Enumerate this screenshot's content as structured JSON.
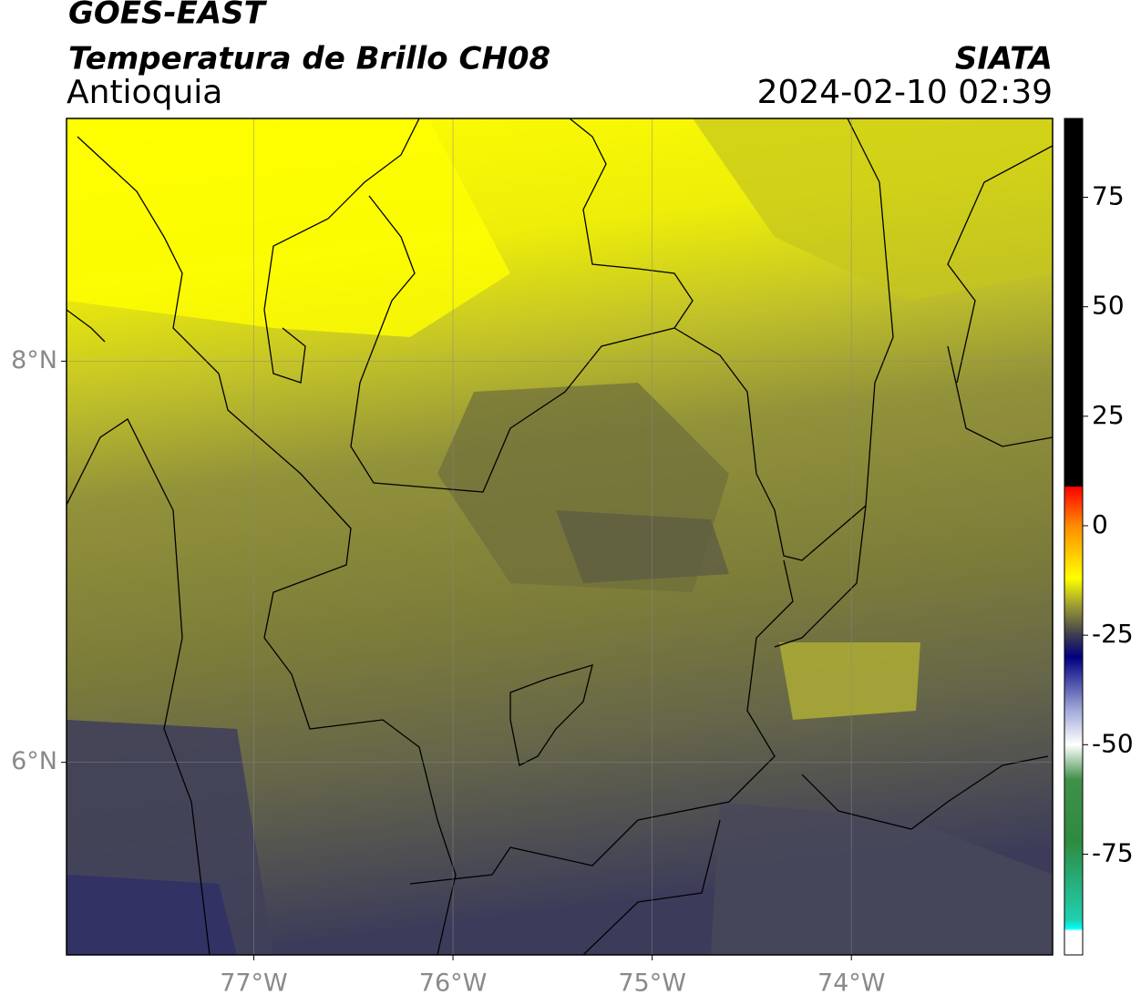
{
  "header": {
    "title": "GOES-EAST",
    "subtitle": "Temperatura de Brillo CH08",
    "region": "Antioquia",
    "source": "SIATA",
    "timestamp": "2024-02-10 02:39"
  },
  "chart_data": {
    "type": "map",
    "xlim": [
      -77.94,
      -72.99
    ],
    "ylim": [
      5.04,
      9.21
    ],
    "xticks": [
      {
        "value": -77,
        "label": "77°W"
      },
      {
        "value": -76,
        "label": "76°W"
      },
      {
        "value": -75,
        "label": "75°W"
      },
      {
        "value": -74,
        "label": "74°W"
      }
    ],
    "yticks": [
      {
        "value": 6,
        "label": "6°N"
      },
      {
        "value": 8,
        "label": "8°N"
      }
    ],
    "grid": true,
    "colorbar": {
      "lim": [
        -98,
        93
      ],
      "ticks": [
        75,
        50,
        25,
        0,
        -25,
        -50,
        -75
      ],
      "stops": [
        {
          "value": 93,
          "color": "#000000"
        },
        {
          "value": 9,
          "color": "#000000"
        },
        {
          "value": 8.9,
          "color": "#ff0000"
        },
        {
          "value": 0,
          "color": "#ff8c00"
        },
        {
          "value": -12,
          "color": "#ffff00"
        },
        {
          "value": -18,
          "color": "#a0a030"
        },
        {
          "value": -25,
          "color": "#3c3c50"
        },
        {
          "value": -30,
          "color": "#000080"
        },
        {
          "value": -42,
          "color": "#a0a8d8"
        },
        {
          "value": -50,
          "color": "#ffffff"
        },
        {
          "value": -58,
          "color": "#40904a"
        },
        {
          "value": -72,
          "color": "#2e8b40"
        },
        {
          "value": -90,
          "color": "#20d0b0"
        },
        {
          "value": -92,
          "color": "#00ffff"
        },
        {
          "value": -92.5,
          "color": "#ffffff"
        },
        {
          "value": -98,
          "color": "#ffffff"
        }
      ]
    }
  }
}
